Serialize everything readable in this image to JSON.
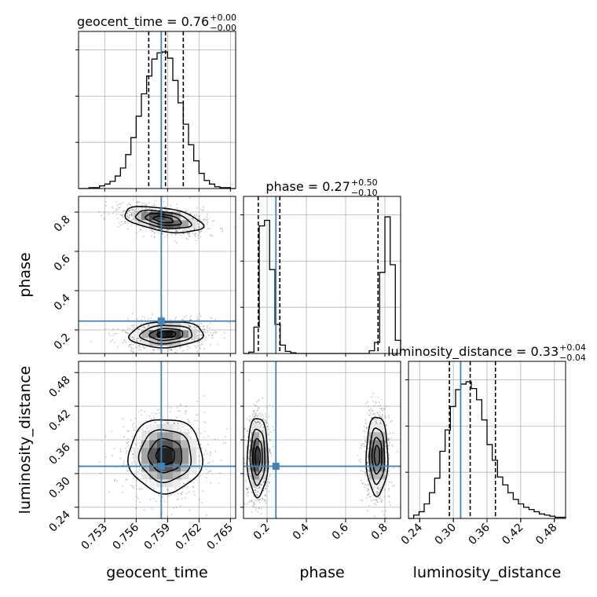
{
  "chart_data": {
    "type": "corner",
    "parameters": [
      "geocent_time",
      "phase",
      "luminosity_distance"
    ],
    "axis_labels": [
      "geocent_time",
      "phase",
      "luminosity_distance"
    ],
    "titles": [
      {
        "name": "geocent_time",
        "value": "0.76",
        "upper": "+0.00",
        "lower": "−0.00"
      },
      {
        "name": "phase",
        "value": "0.27",
        "upper": "+0.50",
        "lower": "−0.10"
      },
      {
        "name": "luminosity_distance",
        "value": "0.33",
        "upper": "+0.04",
        "lower": "−0.04"
      }
    ],
    "ranges": [
      [
        0.7505,
        0.7655
      ],
      [
        0.08,
        0.88
      ],
      [
        0.22,
        0.5
      ]
    ],
    "ticks": [
      [
        0.753,
        0.756,
        0.759,
        0.762,
        0.765
      ],
      [
        0.2,
        0.4,
        0.6,
        0.8
      ],
      [
        0.24,
        0.3,
        0.36,
        0.42,
        0.48
      ]
    ],
    "tick_labels": [
      [
        "0.753",
        "0.756",
        "0.759",
        "0.762",
        "0.765"
      ],
      [
        "0.2",
        "0.4",
        "0.6",
        "0.8"
      ],
      [
        "0.24",
        "0.30",
        "0.36",
        "0.42",
        "0.48"
      ]
    ],
    "truths": [
      0.7584,
      0.245,
      0.313
    ],
    "truth_color": "#4682b4",
    "quantiles": [
      [
        0.7572,
        0.7588,
        0.7605
      ],
      [
        0.155,
        0.265,
        0.765
      ],
      [
        0.293,
        0.33,
        0.375
      ]
    ],
    "histograms": [
      {
        "bin_edges": [
          0.7505,
          0.751,
          0.7515,
          0.752,
          0.7525,
          0.753,
          0.7535,
          0.754,
          0.7545,
          0.755,
          0.7555,
          0.756,
          0.7565,
          0.757,
          0.7575,
          0.758,
          0.7585,
          0.759,
          0.7595,
          0.76,
          0.7605,
          0.761,
          0.7615,
          0.762,
          0.7625,
          0.763,
          0.7635,
          0.764,
          0.7645,
          0.765,
          0.7655
        ],
        "counts": [
          0,
          0,
          1,
          1,
          3,
          5,
          8,
          14,
          23,
          38,
          57,
          81,
          106,
          126,
          145,
          152,
          153,
          146,
          121,
          96,
          72,
          49,
          31,
          17,
          9,
          5,
          2,
          1,
          1,
          0
        ]
      },
      {
        "bin_edges": [
          0.08,
          0.107,
          0.133,
          0.16,
          0.187,
          0.213,
          0.24,
          0.267,
          0.293,
          0.32,
          0.347,
          0.373,
          0.4,
          0.427,
          0.453,
          0.48,
          0.507,
          0.533,
          0.56,
          0.587,
          0.613,
          0.64,
          0.667,
          0.693,
          0.72,
          0.747,
          0.773,
          0.8,
          0.827,
          0.853,
          0.88
        ],
        "counts": [
          0,
          2,
          38,
          184,
          192,
          121,
          42,
          12,
          3,
          1,
          0,
          0,
          0,
          0,
          0,
          0,
          0,
          0,
          0,
          0,
          0,
          0,
          0,
          0,
          4,
          16,
          117,
          197,
          128,
          19
        ]
      },
      {
        "bin_edges": [
          0.22,
          0.2293,
          0.2387,
          0.248,
          0.2573,
          0.2667,
          0.276,
          0.2853,
          0.2947,
          0.304,
          0.3133,
          0.3227,
          0.332,
          0.3413,
          0.3507,
          0.36,
          0.3693,
          0.3787,
          0.388,
          0.3973,
          0.4067,
          0.416,
          0.4253,
          0.4347,
          0.444,
          0.4533,
          0.4627,
          0.472,
          0.4813,
          0.4907,
          0.5
        ],
        "counts": [
          0,
          3,
          6,
          13,
          23,
          36,
          60,
          79,
          100,
          115,
          120,
          122,
          116,
          106,
          88,
          66,
          52,
          37,
          30,
          23,
          17,
          13,
          10,
          8,
          6,
          4,
          3,
          2,
          1,
          1
        ]
      }
    ],
    "contours_2d": [
      {
        "row": 1,
        "col": 0,
        "modes": [
          {
            "center": [
              0.7589,
              0.177
            ],
            "sigma": [
              0.0016,
              0.03
            ],
            "rho": 0.1,
            "weight": 1.0
          },
          {
            "center": [
              0.7586,
              0.762
            ],
            "sigma": [
              0.0017,
              0.03
            ],
            "rho": -0.45,
            "weight": 1.0
          }
        ]
      },
      {
        "row": 2,
        "col": 0,
        "modes": [
          {
            "center": [
              0.7588,
              0.332
            ],
            "sigma": [
              0.0016,
              0.03
            ],
            "rho": 0.0,
            "weight": 1.0
          }
        ]
      },
      {
        "row": 2,
        "col": 1,
        "modes": [
          {
            "center": [
              0.152,
              0.33
            ],
            "sigma": [
              0.024,
              0.032
            ],
            "rho": 0.0,
            "weight": 1.0
          },
          {
            "center": [
              0.76,
              0.332
            ],
            "sigma": [
              0.025,
              0.032
            ],
            "rho": 0.0,
            "weight": 1.0
          }
        ]
      }
    ],
    "grid": true,
    "legend": "none"
  }
}
